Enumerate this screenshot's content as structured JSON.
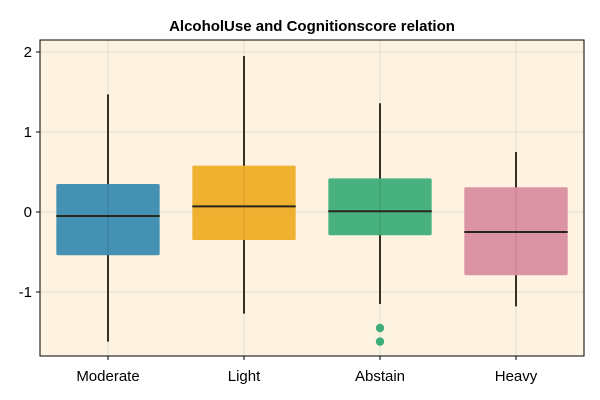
{
  "chart_data": {
    "type": "box",
    "title": "AlcoholUse and Cognitionscore relation",
    "xlabel": "",
    "ylabel": "",
    "categories": [
      "Moderate",
      "Light",
      "Abstain",
      "Heavy"
    ],
    "ylim": [
      -1.8,
      2.15
    ],
    "yticks": [
      -1,
      0,
      1,
      2
    ],
    "ytick_labels": [
      "-1",
      "0",
      "1",
      "2"
    ],
    "grid": true,
    "plot_background": "#fdf3e0",
    "boxes": [
      {
        "category": "Moderate",
        "color": "#3b8bb0",
        "whisker_low": -1.62,
        "q1": -0.54,
        "median": -0.05,
        "q3": 0.35,
        "whisker_high": 1.47,
        "outliers": []
      },
      {
        "category": "Light",
        "color": "#edad26",
        "whisker_low": -1.27,
        "q1": -0.35,
        "median": 0.07,
        "q3": 0.58,
        "whisker_high": 1.95,
        "outliers": []
      },
      {
        "category": "Abstain",
        "color": "#3eae79",
        "whisker_low": -1.15,
        "q1": -0.29,
        "median": 0.01,
        "q3": 0.42,
        "whisker_high": 1.36,
        "outliers": [
          -1.45,
          -1.62
        ]
      },
      {
        "category": "Heavy",
        "color": "#d98ea0",
        "whisker_low": -1.18,
        "q1": -0.79,
        "median": -0.25,
        "q3": 0.31,
        "whisker_high": 0.75,
        "outliers": []
      }
    ]
  }
}
